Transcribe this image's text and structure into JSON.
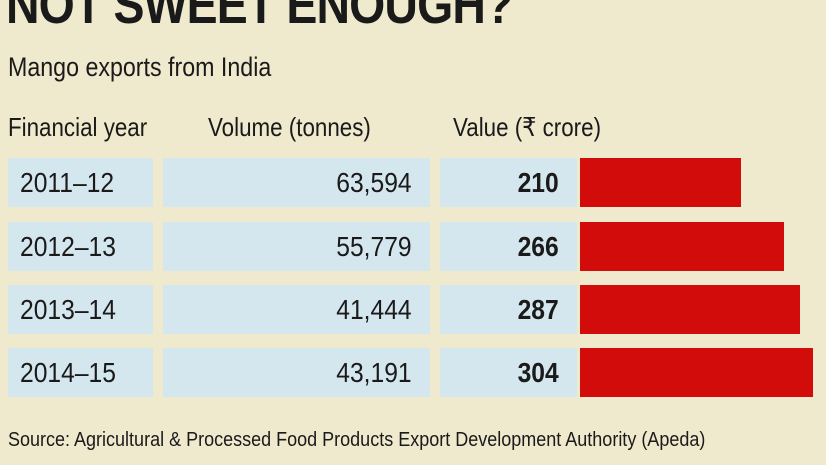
{
  "title": "NOT SWEET ENOUGH?",
  "subtitle": "Mango exports from India",
  "chart_data": {
    "type": "bar",
    "orientation": "horizontal",
    "columns": [
      "Financial year",
      "Volume (tonnes)",
      "Value (₹ crore)"
    ],
    "rows": [
      {
        "year": "2011-12",
        "volume": "63,594",
        "value": "210"
      },
      {
        "year": "2012-13",
        "volume": "55,779",
        "value": "266"
      },
      {
        "year": "2013-14",
        "volume": "41,444",
        "value": "287"
      },
      {
        "year": "2014-15",
        "volume": "43,191",
        "value": "304"
      }
    ],
    "bar_values": [
      210,
      266,
      287,
      304
    ],
    "bar_color": "#d20b0b",
    "cell_color": "#d5e7ee"
  },
  "source": "Source: Agricultural & Processed Food Products Export Development Authority (Apeda)"
}
